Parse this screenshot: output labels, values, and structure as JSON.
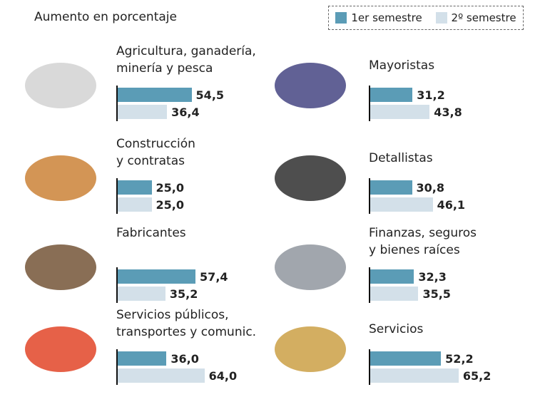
{
  "chart_data": {
    "type": "bar",
    "title": "Aumento en porcentaje",
    "categories": [
      "Agricultura, ganadería,\nminería y pesca",
      "Mayoristas",
      "Construcción\ny contratas",
      "Detallistas",
      "Fabricantes",
      "Finanzas, seguros\ny bienes raíces",
      "Servicios públicos,\ntransportes y comunic.",
      "Servicios"
    ],
    "series": [
      {
        "name": "1er semestre",
        "color": "#5b9cb6",
        "values": [
          54.5,
          31.2,
          25.0,
          30.8,
          57.4,
          32.3,
          36.0,
          52.2
        ],
        "value_labels": [
          "54,5",
          "31,2",
          "25,0",
          "30,8",
          "57,4",
          "32,3",
          "36,0",
          "52,2"
        ]
      },
      {
        "name": "2º semestre",
        "color": "#d3e0e9",
        "values": [
          36.4,
          43.8,
          25.0,
          46.1,
          35.2,
          35.5,
          64.0,
          65.2
        ],
        "value_labels": [
          "36,4",
          "43,8",
          "25,0",
          "46,1",
          "35,2",
          "35,5",
          "64,0",
          "65,2"
        ]
      }
    ]
  }
}
